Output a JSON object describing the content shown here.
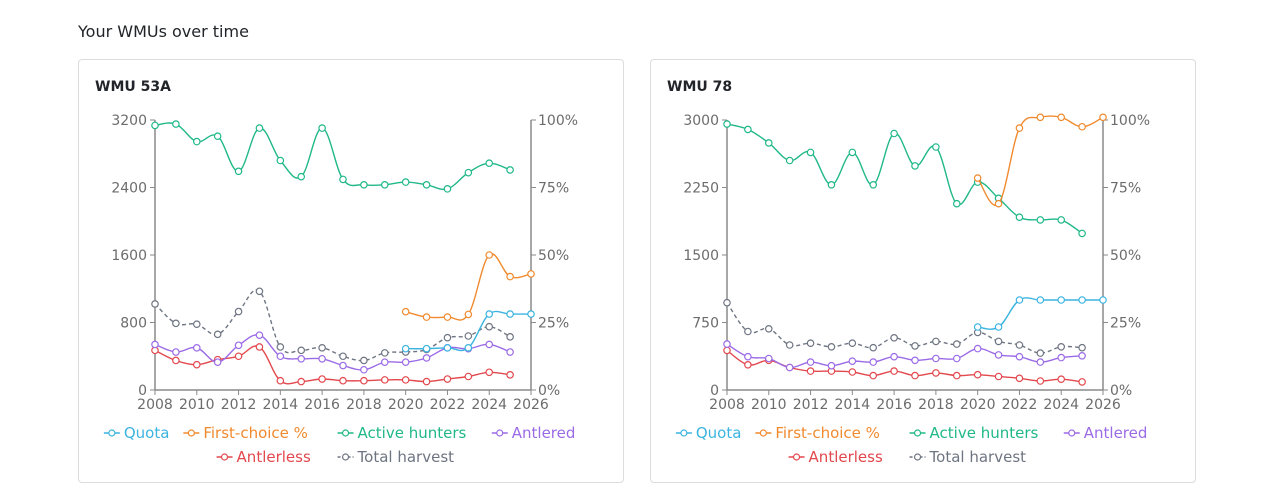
{
  "section_title": "Your WMUs over time",
  "colors": {
    "quota": "#3cb4e0",
    "first_choice": "#f08a2e",
    "active_hunters": "#20b888",
    "antlered": "#9b6be6",
    "antlerless": "#e2484e",
    "total_harvest": "#6e7582",
    "axis": "#8a8a8a"
  },
  "chart_data": [
    {
      "type": "line",
      "title": "WMU 53A",
      "x_ticks": [
        "2008",
        "2010",
        "2012",
        "2014",
        "2016",
        "2018",
        "2020",
        "2022",
        "2024",
        "2026"
      ],
      "xlim": [
        2008,
        2026
      ],
      "left_axis": {
        "ticks": [
          "0",
          "800",
          "1600",
          "2400",
          "3200"
        ],
        "ylim": [
          0,
          3200
        ]
      },
      "right_axis": {
        "ticks": [
          "0%",
          "25%",
          "50%",
          "75%",
          "100%"
        ],
        "ylim": [
          0,
          100
        ]
      },
      "series": [
        {
          "name": "Quota",
          "axis": "left",
          "dashed": false,
          "points": [
            [
              2020,
              490
            ],
            [
              2021,
              490
            ],
            [
              2022,
              500
            ],
            [
              2023,
              500
            ],
            [
              2024,
              900
            ],
            [
              2025,
              900
            ],
            [
              2026,
              900
            ]
          ]
        },
        {
          "name": "First-choice %",
          "axis": "right",
          "dashed": false,
          "points": [
            [
              2020,
              29
            ],
            [
              2021,
              27
            ],
            [
              2022,
              27
            ],
            [
              2023,
              28
            ],
            [
              2024,
              50
            ],
            [
              2025,
              42
            ],
            [
              2026,
              43
            ]
          ]
        },
        {
          "name": "Active hunters",
          "axis": "right",
          "dashed": false,
          "points": [
            [
              2008,
              98
            ],
            [
              2009,
              98.5
            ],
            [
              2010,
              92
            ],
            [
              2011,
              94
            ],
            [
              2012,
              81
            ],
            [
              2013,
              97
            ],
            [
              2014,
              85
            ],
            [
              2015,
              79
            ],
            [
              2016,
              97
            ],
            [
              2017,
              78
            ],
            [
              2018,
              76
            ],
            [
              2019,
              76
            ],
            [
              2020,
              77
            ],
            [
              2021,
              76
            ],
            [
              2022,
              74.5
            ],
            [
              2023,
              80.5
            ],
            [
              2024,
              84
            ],
            [
              2025,
              81.5
            ]
          ]
        },
        {
          "name": "Antlered",
          "axis": "left",
          "dashed": false,
          "points": [
            [
              2008,
              540
            ],
            [
              2009,
              450
            ],
            [
              2010,
              500
            ],
            [
              2011,
              330
            ],
            [
              2012,
              530
            ],
            [
              2013,
              650
            ],
            [
              2014,
              400
            ],
            [
              2015,
              370
            ],
            [
              2016,
              370
            ],
            [
              2017,
              290
            ],
            [
              2018,
              240
            ],
            [
              2019,
              330
            ],
            [
              2020,
              330
            ],
            [
              2021,
              380
            ],
            [
              2022,
              500
            ],
            [
              2023,
              490
            ],
            [
              2024,
              540
            ],
            [
              2025,
              450
            ]
          ]
        },
        {
          "name": "Antlerless",
          "axis": "left",
          "dashed": false,
          "points": [
            [
              2008,
              470
            ],
            [
              2009,
              350
            ],
            [
              2010,
              300
            ],
            [
              2011,
              360
            ],
            [
              2012,
              400
            ],
            [
              2013,
              510
            ],
            [
              2014,
              110
            ],
            [
              2015,
              100
            ],
            [
              2016,
              130
            ],
            [
              2017,
              110
            ],
            [
              2018,
              110
            ],
            [
              2019,
              120
            ],
            [
              2020,
              120
            ],
            [
              2021,
              100
            ],
            [
              2022,
              130
            ],
            [
              2023,
              160
            ],
            [
              2024,
              210
            ],
            [
              2025,
              180
            ]
          ]
        },
        {
          "name": "Total harvest",
          "axis": "left",
          "dashed": true,
          "points": [
            [
              2008,
              1020
            ],
            [
              2009,
              790
            ],
            [
              2010,
              780
            ],
            [
              2011,
              660
            ],
            [
              2012,
              930
            ],
            [
              2013,
              1170
            ],
            [
              2014,
              510
            ],
            [
              2015,
              470
            ],
            [
              2016,
              500
            ],
            [
              2017,
              400
            ],
            [
              2018,
              350
            ],
            [
              2019,
              440
            ],
            [
              2020,
              450
            ],
            [
              2021,
              480
            ],
            [
              2022,
              620
            ],
            [
              2023,
              640
            ],
            [
              2024,
              750
            ],
            [
              2025,
              630
            ]
          ]
        }
      ]
    },
    {
      "type": "line",
      "title": "WMU 78",
      "x_ticks": [
        "2008",
        "2010",
        "2012",
        "2014",
        "2016",
        "2018",
        "2020",
        "2022",
        "2024",
        "2026"
      ],
      "xlim": [
        2008,
        2026
      ],
      "left_axis": {
        "ticks": [
          "0",
          "750",
          "1500",
          "2250",
          "3000"
        ],
        "ylim": [
          0,
          3000
        ]
      },
      "right_axis": {
        "ticks": [
          "0%",
          "25%",
          "50%",
          "75%",
          "100%"
        ],
        "ylim": [
          0,
          100
        ]
      },
      "series": [
        {
          "name": "Quota",
          "axis": "left",
          "dashed": false,
          "points": [
            [
              2020,
              700
            ],
            [
              2021,
              700
            ],
            [
              2022,
              1000
            ],
            [
              2023,
              1000
            ],
            [
              2024,
              1000
            ],
            [
              2025,
              1000
            ],
            [
              2026,
              1000
            ]
          ]
        },
        {
          "name": "First-choice %",
          "axis": "right",
          "dashed": false,
          "points": [
            [
              2020,
              78.5
            ],
            [
              2021,
              69
            ],
            [
              2022,
              97
            ],
            [
              2023,
              101
            ],
            [
              2024,
              101
            ],
            [
              2025,
              97.5
            ],
            [
              2026,
              101
            ]
          ]
        },
        {
          "name": "Active hunters",
          "axis": "right",
          "dashed": false,
          "points": [
            [
              2008,
              98.5
            ],
            [
              2009,
              96.5
            ],
            [
              2010,
              91.5
            ],
            [
              2011,
              85
            ],
            [
              2012,
              88
            ],
            [
              2013,
              76
            ],
            [
              2014,
              88
            ],
            [
              2015,
              76
            ],
            [
              2016,
              95
            ],
            [
              2017,
              83
            ],
            [
              2018,
              90
            ],
            [
              2019,
              69
            ],
            [
              2020,
              77
            ],
            [
              2021,
              71
            ],
            [
              2022,
              64
            ],
            [
              2023,
              63
            ],
            [
              2024,
              63
            ],
            [
              2025,
              58
            ]
          ]
        },
        {
          "name": "Antlered",
          "axis": "left",
          "dashed": false,
          "points": [
            [
              2008,
              510
            ],
            [
              2009,
              370
            ],
            [
              2010,
              350
            ],
            [
              2011,
              250
            ],
            [
              2012,
              310
            ],
            [
              2013,
              270
            ],
            [
              2014,
              320
            ],
            [
              2015,
              310
            ],
            [
              2016,
              370
            ],
            [
              2017,
              330
            ],
            [
              2018,
              350
            ],
            [
              2019,
              350
            ],
            [
              2020,
              460
            ],
            [
              2021,
              390
            ],
            [
              2022,
              370
            ],
            [
              2023,
              310
            ],
            [
              2024,
              360
            ],
            [
              2025,
              380
            ]
          ]
        },
        {
          "name": "Antlerless",
          "axis": "left",
          "dashed": false,
          "points": [
            [
              2008,
              440
            ],
            [
              2009,
              280
            ],
            [
              2010,
              330
            ],
            [
              2011,
              250
            ],
            [
              2012,
              210
            ],
            [
              2013,
              210
            ],
            [
              2014,
              200
            ],
            [
              2015,
              160
            ],
            [
              2016,
              210
            ],
            [
              2017,
              160
            ],
            [
              2018,
              190
            ],
            [
              2019,
              160
            ],
            [
              2020,
              170
            ],
            [
              2021,
              150
            ],
            [
              2022,
              130
            ],
            [
              2023,
              100
            ],
            [
              2024,
              120
            ],
            [
              2025,
              90
            ]
          ]
        },
        {
          "name": "Total harvest",
          "axis": "left",
          "dashed": true,
          "points": [
            [
              2008,
              970
            ],
            [
              2009,
              650
            ],
            [
              2010,
              680
            ],
            [
              2011,
              500
            ],
            [
              2012,
              520
            ],
            [
              2013,
              480
            ],
            [
              2014,
              520
            ],
            [
              2015,
              470
            ],
            [
              2016,
              580
            ],
            [
              2017,
              490
            ],
            [
              2018,
              540
            ],
            [
              2019,
              510
            ],
            [
              2020,
              640
            ],
            [
              2021,
              540
            ],
            [
              2022,
              500
            ],
            [
              2023,
              410
            ],
            [
              2024,
              480
            ],
            [
              2025,
              470
            ]
          ]
        }
      ]
    }
  ]
}
